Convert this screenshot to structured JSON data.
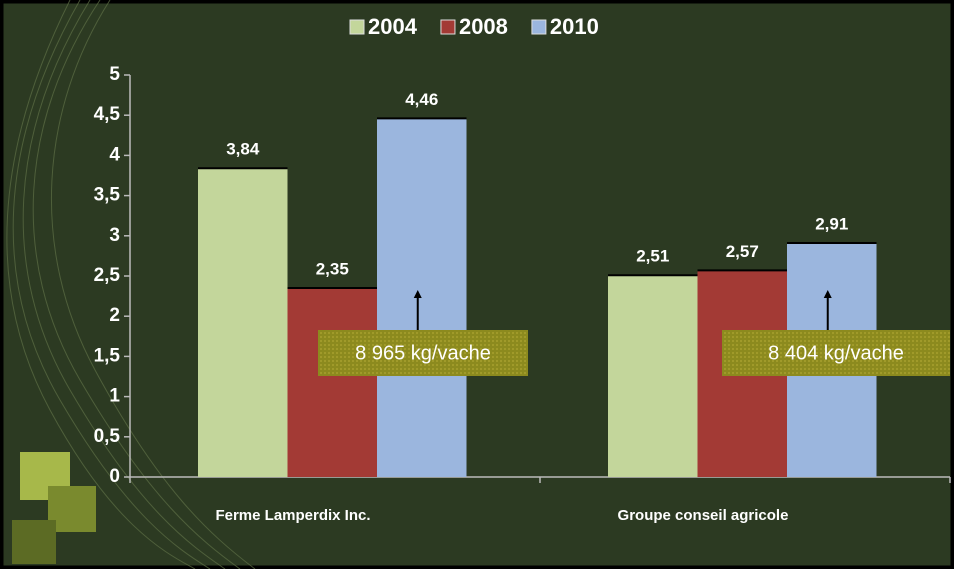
{
  "chart_data": {
    "type": "bar",
    "categories": [
      "Ferme Lamperdix Inc.",
      "Groupe conseil agricole"
    ],
    "series": [
      {
        "name": "2004",
        "color": "#c3d69b",
        "values": [
          3.84,
          2.51
        ],
        "value_labels": [
          "3,84",
          "2,51"
        ]
      },
      {
        "name": "2008",
        "color": "#a33a35",
        "values": [
          2.35,
          2.57
        ],
        "value_labels": [
          "2,35",
          "2,57"
        ]
      },
      {
        "name": "2010",
        "color": "#9bb6de",
        "values": [
          4.46,
          2.91
        ],
        "value_labels": [
          "4,46",
          "2,91"
        ]
      }
    ],
    "ylim": [
      0,
      5
    ],
    "yticks": [
      0,
      {
        "value": 0.5,
        "label": "0,5"
      },
      1,
      {
        "value": 1.5,
        "label": "1,5"
      },
      2,
      {
        "value": 2.5,
        "label": "2,5"
      },
      3,
      {
        "value": 3.5,
        "label": "3,5"
      },
      4,
      {
        "value": 4.5,
        "label": "4,5"
      },
      5
    ],
    "legend": "top",
    "annotations": [
      "8 965 kg/vache",
      "8 404 kg/vache"
    ]
  }
}
